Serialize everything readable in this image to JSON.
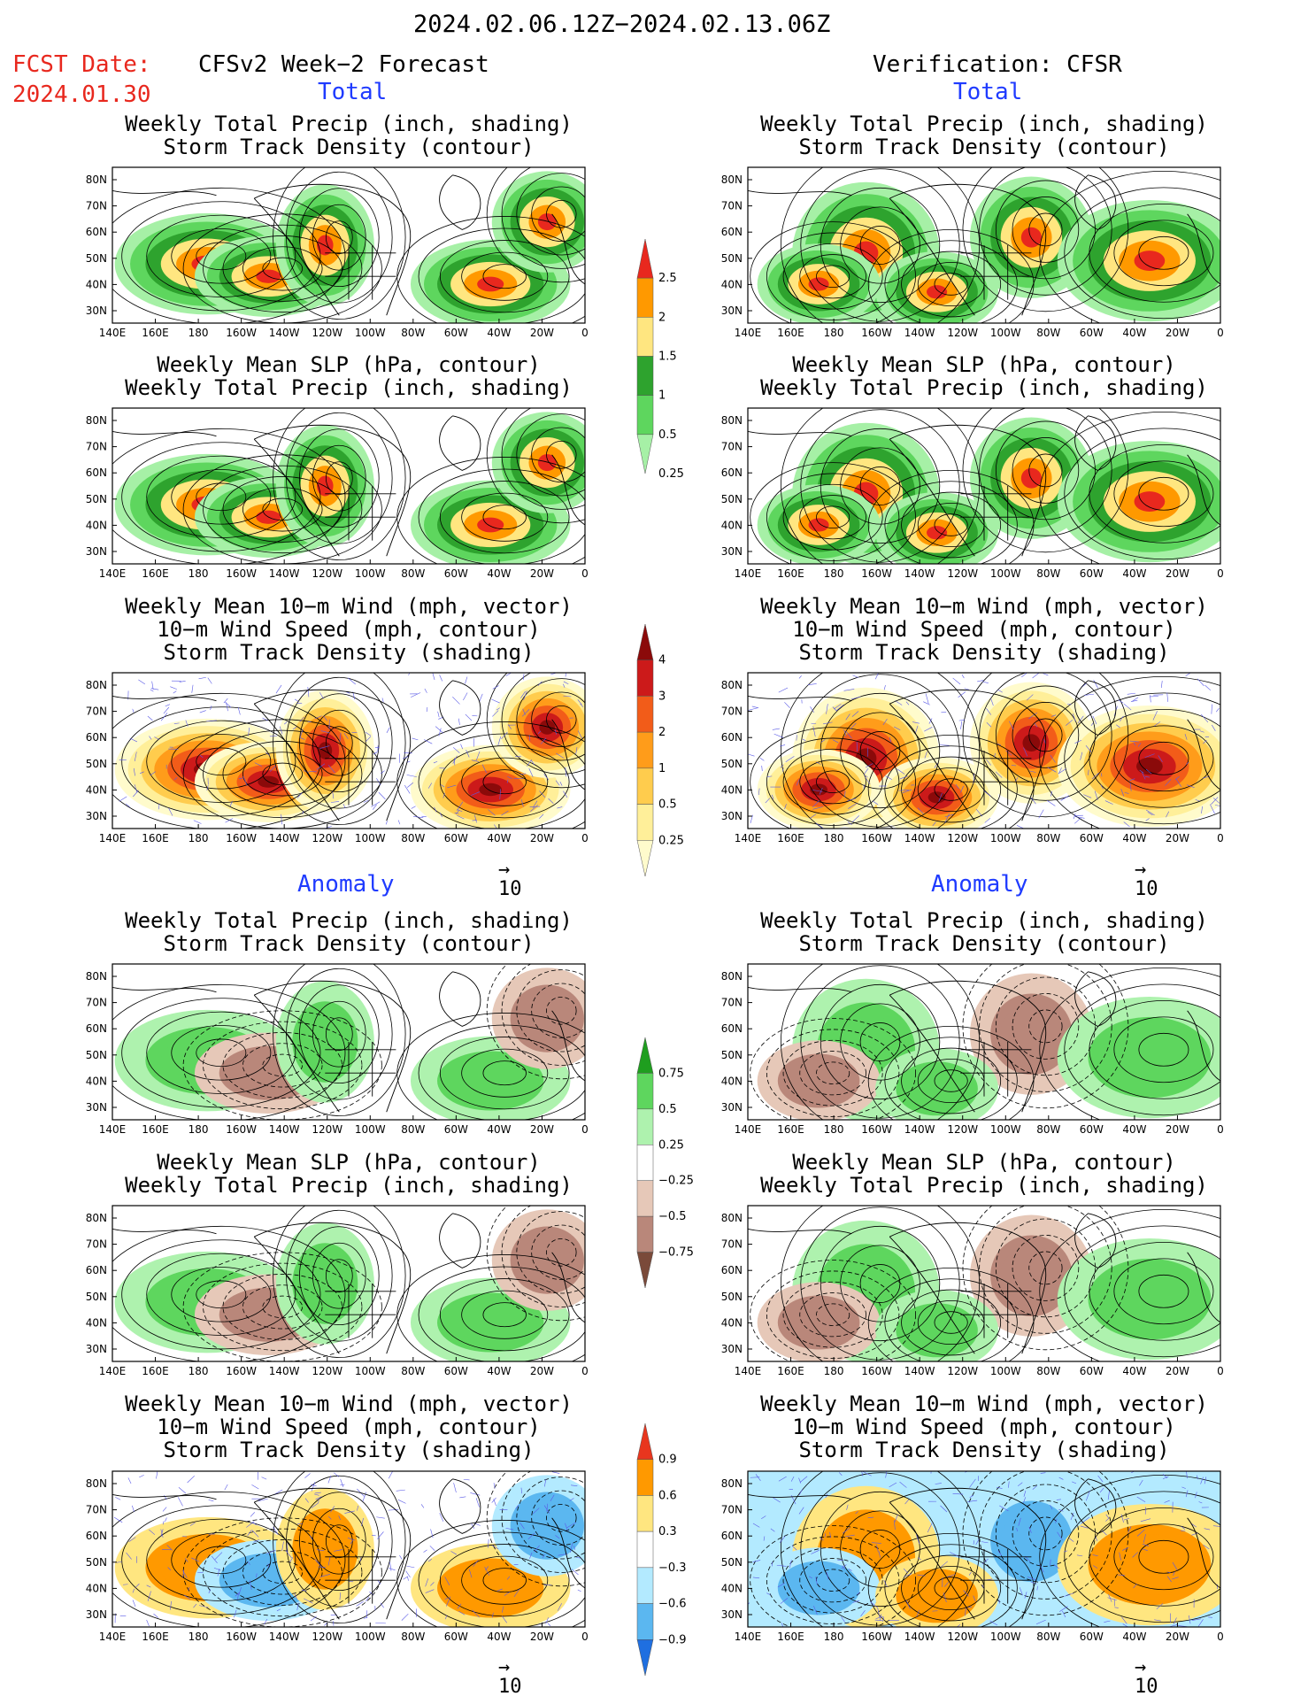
{
  "header": {
    "date_range": "2024.02.06.12Z−2024.02.13.06Z",
    "fcst_label": "FCST Date:",
    "fcst_date": "2024.01.30",
    "left_title": "CFSv2 Week−2 Forecast",
    "right_title": "Verification: CFSR",
    "section_total": "Total",
    "section_anomaly": "Anomaly"
  },
  "axes": {
    "lat_labels": [
      "80N",
      "70N",
      "60N",
      "50N",
      "40N",
      "30N"
    ],
    "lon_labels": [
      "140E",
      "160E",
      "180",
      "160W",
      "140W",
      "120W",
      "100W",
      "80W",
      "60W",
      "40W",
      "20W",
      "0"
    ]
  },
  "panels": [
    {
      "col": 0,
      "row": 0,
      "type": "precip-total",
      "title": [
        "Weekly Total Precip (inch, shading)",
        "Storm Track Density (contour)"
      ]
    },
    {
      "col": 1,
      "row": 0,
      "type": "precip-total",
      "title": [
        "Weekly Total Precip (inch, shading)",
        "Storm Track Density (contour)"
      ]
    },
    {
      "col": 0,
      "row": 1,
      "type": "slp-total",
      "title": [
        "Weekly Mean SLP (hPa, contour)",
        "Weekly Total Precip (inch, shading)"
      ]
    },
    {
      "col": 1,
      "row": 1,
      "type": "slp-total",
      "title": [
        "Weekly Mean SLP (hPa, contour)",
        "Weekly Total Precip (inch, shading)"
      ]
    },
    {
      "col": 0,
      "row": 2,
      "type": "wind-total",
      "title": [
        "Weekly Mean 10−m Wind (mph, vector)",
        "10−m Wind Speed (mph, contour)",
        "Storm Track Density (shading)"
      ]
    },
    {
      "col": 1,
      "row": 2,
      "type": "wind-total",
      "title": [
        "Weekly Mean 10−m Wind (mph, vector)",
        "10−m Wind Speed (mph, contour)",
        "Storm Track Density (shading)"
      ]
    },
    {
      "col": 0,
      "row": 3,
      "type": "precip-anom",
      "title": [
        "Weekly Total Precip (inch, shading)",
        "Storm Track Density (contour)"
      ]
    },
    {
      "col": 1,
      "row": 3,
      "type": "precip-anom",
      "title": [
        "Weekly Total Precip (inch, shading)",
        "Storm Track Density (contour)"
      ]
    },
    {
      "col": 0,
      "row": 4,
      "type": "slp-anom",
      "title": [
        "Weekly Mean SLP (hPa, contour)",
        "Weekly Total Precip (inch, shading)"
      ]
    },
    {
      "col": 1,
      "row": 4,
      "type": "slp-anom",
      "title": [
        "Weekly Mean SLP (hPa, contour)",
        "Weekly Total Precip (inch, shading)"
      ]
    },
    {
      "col": 0,
      "row": 5,
      "type": "wind-anom",
      "title": [
        "Weekly Mean 10−m Wind (mph, vector)",
        "10−m Wind Speed (mph, contour)",
        "Storm Track Density (shading)"
      ]
    },
    {
      "col": 1,
      "row": 5,
      "type": "wind-anom",
      "title": [
        "Weekly Mean 10−m Wind (mph, vector)",
        "10−m Wind Speed (mph, contour)",
        "Storm Track Density (shading)"
      ]
    }
  ],
  "vector_reference": {
    "label": "10"
  },
  "colorbars": {
    "precip_total": {
      "labels": [
        "2.5",
        "2",
        "1.5",
        "1",
        "0.5",
        "0.25"
      ],
      "colors": [
        "#e8281e",
        "#ff9900",
        "#ffe680",
        "#2ea32e",
        "#5ed65e",
        "#a6f0a6"
      ]
    },
    "storm_total": {
      "labels": [
        "4",
        "3",
        "2",
        "1",
        "0.5",
        "0.25"
      ],
      "colors": [
        "#8b0a0a",
        "#cc1a1a",
        "#f25c19",
        "#ff9c1a",
        "#ffcc4d",
        "#ffef99",
        "#fffbcc"
      ]
    },
    "precip_anom": {
      "labels": [
        "0.75",
        "0.5",
        "0.25",
        "−0.25",
        "−0.5",
        "−0.75"
      ],
      "colors": [
        "#1f9e1f",
        "#5ed65e",
        "#aef2ae",
        "#ffffff",
        "#e6c8b8",
        "#b9877a",
        "#7a4a3a"
      ]
    },
    "storm_anom": {
      "labels": [
        "0.9",
        "0.6",
        "0.3",
        "−0.3",
        "−0.6",
        "−0.9"
      ],
      "colors": [
        "#e8361e",
        "#ff9900",
        "#ffe680",
        "#ffffff",
        "#b3eaff",
        "#5bb7f0",
        "#1f6fe0"
      ]
    }
  }
}
